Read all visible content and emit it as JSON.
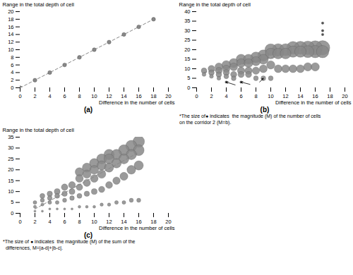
{
  "chart_data": [
    {
      "type": "line",
      "title": "(a)",
      "marker": "circle",
      "line_style": "dashed",
      "color": "#888888",
      "x": [
        0,
        2,
        4,
        6,
        8,
        10,
        12,
        14,
        16,
        18
      ],
      "values": [
        0,
        2,
        4,
        6,
        8,
        10,
        12,
        14,
        16,
        18
      ],
      "xlim": [
        0,
        20
      ],
      "ylim": [
        0,
        20
      ],
      "xticks": [
        0,
        2,
        4,
        6,
        8,
        10,
        12,
        14,
        16,
        18,
        20
      ],
      "yticks": [
        0,
        2,
        4,
        6,
        8,
        10,
        12,
        14,
        16,
        18,
        20
      ],
      "xlabel": "Difference in the number of cells",
      "ylabel": "Range in the total depth of cell"
    },
    {
      "type": "bubble",
      "title": "(b)",
      "annotation": "*The size of● indicates  the magnitude (M) of the number of cells\non the corridor 2 (M=b).",
      "xlabel": "Difference in the number of cells",
      "ylabel": "Range in the total depth of cell",
      "xlim": [
        0,
        20
      ],
      "ylim": [
        0,
        40
      ],
      "xticks": [
        0,
        2,
        4,
        6,
        8,
        10,
        12,
        14,
        16,
        18,
        20
      ],
      "yticks": [
        0,
        5,
        10,
        15,
        20,
        25,
        30,
        35,
        40
      ],
      "x": [
        1,
        1,
        2,
        2,
        2,
        3,
        3,
        3,
        3,
        4,
        4,
        4,
        4,
        4,
        5,
        5,
        5,
        5,
        6,
        6,
        6,
        6,
        6,
        7,
        7,
        7,
        7,
        8,
        8,
        8,
        8,
        9,
        9,
        9,
        9,
        10,
        10,
        10,
        10,
        11,
        11,
        11,
        12,
        12,
        12,
        13,
        13,
        13,
        14,
        14,
        14,
        15,
        15,
        15,
        16,
        16,
        16,
        17,
        17,
        17,
        17,
        17
      ],
      "values": [
        7,
        9,
        6,
        8,
        10,
        5,
        7,
        9,
        11,
        3,
        6,
        8,
        10,
        12,
        5,
        7,
        11,
        13,
        3,
        7,
        9,
        13,
        15,
        7,
        9,
        13,
        15,
        5,
        9,
        14,
        16,
        5,
        10,
        15,
        17,
        5,
        12,
        18,
        20,
        10,
        18,
        20,
        10,
        18,
        20,
        10,
        19,
        21,
        10,
        19,
        21,
        11,
        19,
        21,
        11,
        19,
        21,
        28,
        30,
        34,
        19,
        21
      ],
      "sizes": [
        20,
        40,
        20,
        40,
        60,
        20,
        40,
        60,
        80,
        8,
        30,
        50,
        70,
        100,
        30,
        50,
        80,
        110,
        8,
        50,
        70,
        100,
        130,
        50,
        70,
        100,
        130,
        30,
        70,
        110,
        150,
        30,
        80,
        130,
        160,
        30,
        90,
        150,
        180,
        80,
        150,
        190,
        80,
        150,
        190,
        80,
        170,
        210,
        80,
        170,
        220,
        90,
        190,
        240,
        90,
        200,
        260,
        8,
        8,
        8,
        200,
        270
      ],
      "colors": [
        "#888888",
        "#888888",
        "#888888",
        "#888888",
        "#888888",
        "#888888",
        "#888888",
        "#888888",
        "#888888",
        "#333333",
        "#888888",
        "#888888",
        "#888888",
        "#888888",
        "#888888",
        "#888888",
        "#888888",
        "#888888",
        "#333333",
        "#888888",
        "#888888",
        "#888888",
        "#888888",
        "#888888",
        "#888888",
        "#888888",
        "#888888",
        "#888888",
        "#888888",
        "#888888",
        "#888888",
        "#888888",
        "#888888",
        "#888888",
        "#888888",
        "#888888",
        "#888888",
        "#888888",
        "#888888",
        "#888888",
        "#888888",
        "#888888",
        "#888888",
        "#888888",
        "#888888",
        "#888888",
        "#888888",
        "#888888",
        "#888888",
        "#888888",
        "#888888",
        "#888888",
        "#888888",
        "#888888",
        "#888888",
        "#888888",
        "#888888",
        "#333333",
        "#333333",
        "#333333",
        "#888888",
        "#888888"
      ],
      "trend": {
        "x": [
          1,
          17
        ],
        "values": [
          8,
          22
        ],
        "color": "#888888",
        "line_style": "dashed"
      },
      "arrows": [
        {
          "x1": 5.2,
          "y1": 1.5,
          "x2": 4,
          "y2": 3.0
        },
        {
          "x1": 7.2,
          "y1": 1.8,
          "x2": 6,
          "y2": 3.0
        },
        {
          "x1": 8.5,
          "y1": 3.0,
          "x2": 9,
          "y2": 5.0
        }
      ]
    },
    {
      "type": "bubble",
      "title": "(c)",
      "annotation": "*The size of ● indicates  the magnitude (M) of the sum of the\n  differences, M=|a-d|+|b-c|.",
      "xlabel": "Difference in the number of cells",
      "ylabel": "Range in the total depth of cell",
      "xlim": [
        0,
        20
      ],
      "ylim": [
        0,
        35
      ],
      "xticks": [
        0,
        2,
        4,
        6,
        8,
        10,
        12,
        14,
        16,
        18,
        20
      ],
      "yticks": [
        0,
        5,
        10,
        15,
        20,
        25,
        30,
        35
      ],
      "x": [
        2,
        2,
        2,
        3,
        3,
        3,
        3,
        4,
        4,
        4,
        4,
        5,
        5,
        5,
        5,
        6,
        6,
        6,
        6,
        7,
        7,
        7,
        7,
        8,
        8,
        8,
        8,
        8,
        9,
        9,
        9,
        9,
        9,
        10,
        10,
        10,
        10,
        10,
        11,
        11,
        11,
        11,
        11,
        12,
        12,
        12,
        12,
        12,
        13,
        13,
        13,
        13,
        14,
        14,
        14,
        14,
        15,
        15,
        15,
        15,
        16,
        16,
        16,
        16
      ],
      "values": [
        1,
        3,
        5,
        1,
        4,
        6,
        8,
        2,
        5,
        7,
        9,
        2,
        5,
        8,
        10,
        2,
        6,
        9,
        12,
        2,
        7,
        10,
        13,
        3,
        8,
        12,
        16,
        19,
        3,
        9,
        14,
        18,
        21,
        3,
        10,
        16,
        20,
        23,
        4,
        11,
        18,
        22,
        25,
        4,
        13,
        21,
        25,
        27,
        5,
        15,
        23,
        27,
        5,
        17,
        25,
        29,
        6,
        20,
        27,
        31,
        6,
        22,
        29,
        33
      ],
      "sizes": [
        6,
        12,
        18,
        6,
        12,
        22,
        32,
        6,
        18,
        28,
        38,
        6,
        18,
        32,
        44,
        6,
        22,
        38,
        55,
        6,
        28,
        44,
        62,
        10,
        32,
        55,
        78,
        95,
        10,
        38,
        68,
        90,
        108,
        10,
        44,
        78,
        100,
        118,
        14,
        50,
        90,
        112,
        130,
        14,
        62,
        108,
        130,
        140,
        18,
        72,
        118,
        140,
        18,
        84,
        130,
        152,
        22,
        100,
        140,
        162,
        22,
        112,
        152,
        174
      ],
      "colors": [
        "#888888",
        "#888888",
        "#888888",
        "#888888",
        "#888888",
        "#888888",
        "#888888",
        "#888888",
        "#888888",
        "#888888",
        "#888888",
        "#888888",
        "#888888",
        "#888888",
        "#888888",
        "#888888",
        "#888888",
        "#888888",
        "#888888",
        "#888888",
        "#888888",
        "#888888",
        "#888888",
        "#888888",
        "#888888",
        "#888888",
        "#888888",
        "#888888",
        "#888888",
        "#888888",
        "#888888",
        "#888888",
        "#888888",
        "#888888",
        "#888888",
        "#888888",
        "#888888",
        "#888888",
        "#888888",
        "#888888",
        "#888888",
        "#888888",
        "#888888",
        "#888888",
        "#888888",
        "#888888",
        "#888888",
        "#888888",
        "#888888",
        "#888888",
        "#888888",
        "#888888",
        "#888888",
        "#888888",
        "#888888",
        "#888888",
        "#888888",
        "#888888",
        "#888888",
        "#888888",
        "#888888",
        "#888888",
        "#888888",
        "#888888"
      ],
      "trend": {
        "x": [
          2,
          16
        ],
        "values": [
          2,
          28
        ],
        "color": "#888888",
        "line_style": "dashed"
      }
    }
  ]
}
